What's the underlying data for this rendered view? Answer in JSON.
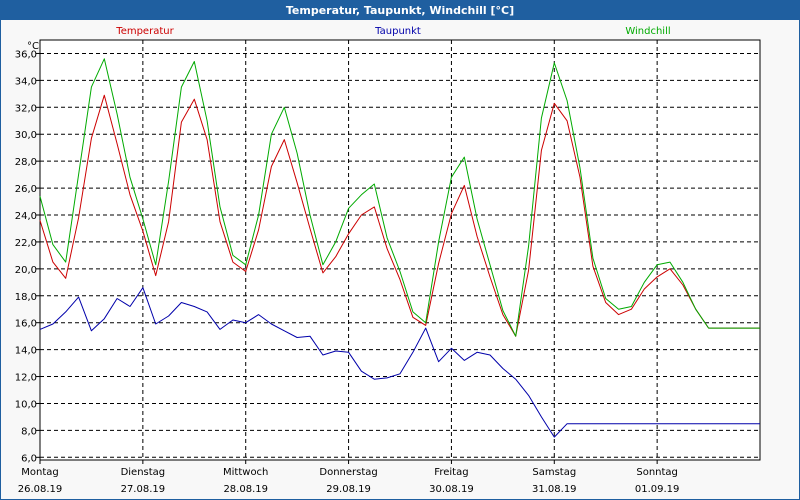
{
  "window": {
    "title": "Temperatur, Taupunkt, Windchill [°C]"
  },
  "chart_data": {
    "type": "line",
    "title": "Temperatur, Taupunkt, Windchill [°C]",
    "ylabel": "°C",
    "ylim": [
      5.8,
      37.0
    ],
    "yticks": [
      "6,0",
      "8,0",
      "10,0",
      "12,0",
      "14,0",
      "16,0",
      "18,0",
      "20,0",
      "22,0",
      "24,0",
      "26,0",
      "28,0",
      "30,0",
      "32,0",
      "34,0",
      "36,0"
    ],
    "ytick_values": [
      6,
      8,
      10,
      12,
      14,
      16,
      18,
      20,
      22,
      24,
      26,
      28,
      30,
      32,
      34,
      36
    ],
    "xlim": [
      0,
      7
    ],
    "grid": true,
    "days": [
      {
        "name": "Montag",
        "date": "26.08.19"
      },
      {
        "name": "Dienstag",
        "date": "27.08.19"
      },
      {
        "name": "Mittwoch",
        "date": "28.08.19"
      },
      {
        "name": "Donnerstag",
        "date": "29.08.19"
      },
      {
        "name": "Freitag",
        "date": "30.08.19"
      },
      {
        "name": "Samstag",
        "date": "31.08.19"
      },
      {
        "name": "Sonntag",
        "date": "01.09.19"
      }
    ],
    "x": [
      0,
      0.125,
      0.25,
      0.375,
      0.5,
      0.625,
      0.75,
      0.875,
      1,
      1.125,
      1.25,
      1.375,
      1.5,
      1.625,
      1.75,
      1.875,
      2,
      2.125,
      2.25,
      2.375,
      2.5,
      2.625,
      2.75,
      2.875,
      3,
      3.125,
      3.25,
      3.375,
      3.5,
      3.625,
      3.75,
      3.875,
      4,
      4.125,
      4.25,
      4.375,
      4.5,
      4.625,
      4.75,
      4.875,
      5,
      5.125,
      5.25,
      5.375,
      5.5,
      5.625,
      5.75,
      5.875,
      6,
      6.125,
      6.25,
      6.375,
      6.5,
      6.625,
      6.75,
      6.875,
      7
    ],
    "series": [
      {
        "name": "Temperatur",
        "color": "#cc0000",
        "values": [
          23.6,
          20.5,
          19.3,
          23.8,
          29.7,
          32.9,
          29.3,
          25.5,
          22.8,
          19.5,
          23.5,
          30.9,
          32.6,
          29.6,
          23.5,
          20.5,
          19.8,
          22.9,
          27.6,
          29.6,
          26.4,
          23.0,
          19.7,
          20.9,
          22.6,
          24.0,
          24.6,
          21.5,
          19.2,
          16.4,
          15.8,
          20.4,
          24.1,
          26.2,
          22.4,
          19.4,
          16.6,
          15.0,
          19.9,
          28.8,
          32.3,
          31.0,
          26.8,
          20.2,
          17.5,
          16.6,
          17.0,
          18.5,
          19.4,
          20.0,
          18.8,
          17.0,
          15.6,
          15.6,
          15.6,
          15.6,
          15.6
        ]
      },
      {
        "name": "Taupunkt",
        "color": "#0000aa",
        "values": [
          15.5,
          15.9,
          16.8,
          17.9,
          15.4,
          16.3,
          17.8,
          17.2,
          18.6,
          15.9,
          16.5,
          17.5,
          17.2,
          16.8,
          15.5,
          16.2,
          16.0,
          16.6,
          15.9,
          15.4,
          14.9,
          15.0,
          13.6,
          13.9,
          13.8,
          12.4,
          11.8,
          11.9,
          12.2,
          13.8,
          15.6,
          13.1,
          14.1,
          13.2,
          13.8,
          13.6,
          12.6,
          11.8,
          10.6,
          9.0,
          7.5,
          8.5,
          8.5,
          8.5,
          8.5,
          8.5,
          8.5,
          8.5,
          8.5,
          8.5,
          8.5,
          8.5,
          8.5,
          8.5,
          8.5,
          8.5,
          8.5
        ]
      },
      {
        "name": "Windchill",
        "color": "#00aa00",
        "values": [
          25.4,
          21.8,
          20.5,
          27.0,
          33.5,
          35.6,
          31.5,
          26.8,
          23.7,
          20.3,
          26.5,
          33.5,
          35.4,
          31.0,
          24.6,
          21.0,
          20.3,
          24.0,
          30.0,
          32.0,
          28.6,
          24.0,
          20.3,
          22.0,
          24.5,
          25.5,
          26.3,
          22.3,
          19.8,
          16.8,
          16.0,
          22.0,
          26.8,
          28.3,
          23.7,
          20.3,
          16.9,
          15.0,
          21.7,
          31.2,
          35.3,
          32.5,
          27.5,
          20.8,
          17.8,
          17.0,
          17.2,
          19.0,
          20.3,
          20.5,
          19.0,
          17.0,
          15.6,
          15.6,
          15.6,
          15.6,
          15.6
        ]
      }
    ]
  }
}
